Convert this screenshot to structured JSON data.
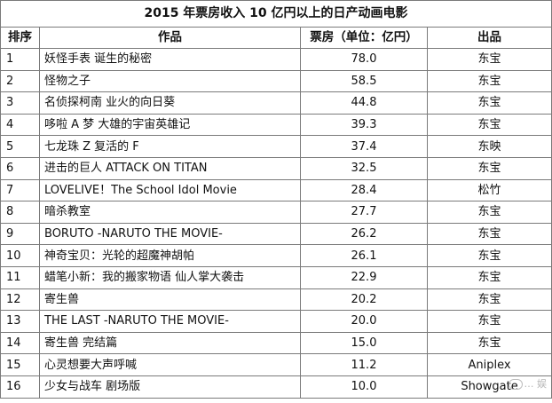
{
  "title": "2015 年票房收入 10 亿円以上的日产动画电影",
  "headers": {
    "rank": "排序",
    "film": "作品",
    "box": "票房（单位：亿円）",
    "dist": "出品"
  },
  "rows": [
    {
      "rank": "1",
      "film": "妖怪手表 诞生的秘密",
      "box": "78.0",
      "dist": "东宝"
    },
    {
      "rank": "2",
      "film": "怪物之子",
      "box": "58.5",
      "dist": "东宝"
    },
    {
      "rank": "3",
      "film": "名侦探柯南 业火的向日葵",
      "box": "44.8",
      "dist": "东宝"
    },
    {
      "rank": "4",
      "film": "哆啦 A 梦 大雄的宇宙英雄记",
      "box": "39.3",
      "dist": "东宝"
    },
    {
      "rank": "5",
      "film": "七龙珠 Z 复活的 F",
      "box": "37.4",
      "dist": "东映"
    },
    {
      "rank": "6",
      "film": "进击的巨人 ATTACK ON TITAN",
      "box": "32.5",
      "dist": "东宝"
    },
    {
      "rank": "7",
      "film": "LOVELIVE！The School Idol Movie",
      "box": "28.4",
      "dist": "松竹"
    },
    {
      "rank": "8",
      "film": "暗杀教室",
      "box": "27.7",
      "dist": "东宝"
    },
    {
      "rank": "9",
      "film": "BORUTO -NARUTO THE MOVIE-",
      "box": "26.2",
      "dist": "东宝"
    },
    {
      "rank": "10",
      "film": "神奇宝贝：光轮的超魔神胡帕",
      "box": "26.1",
      "dist": "东宝"
    },
    {
      "rank": "11",
      "film": "蜡笔小新：我的搬家物语 仙人掌大袭击",
      "box": "22.9",
      "dist": "东宝"
    },
    {
      "rank": "12",
      "film": "寄生兽",
      "box": "20.2",
      "dist": "东宝"
    },
    {
      "rank": "13",
      "film": "THE LAST -NARUTO THE MOVIE-",
      "box": "20.0",
      "dist": "东宝"
    },
    {
      "rank": "14",
      "film": "寄生兽 完结篇",
      "box": "15.0",
      "dist": "东宝"
    },
    {
      "rank": "15",
      "film": "心灵想要大声呼喊",
      "box": "11.2",
      "dist": "Aniplex"
    },
    {
      "rank": "16",
      "film": "少女与战车 剧场版",
      "box": "10.0",
      "dist": "Showgate"
    }
  ],
  "watermark": "… 娱"
}
